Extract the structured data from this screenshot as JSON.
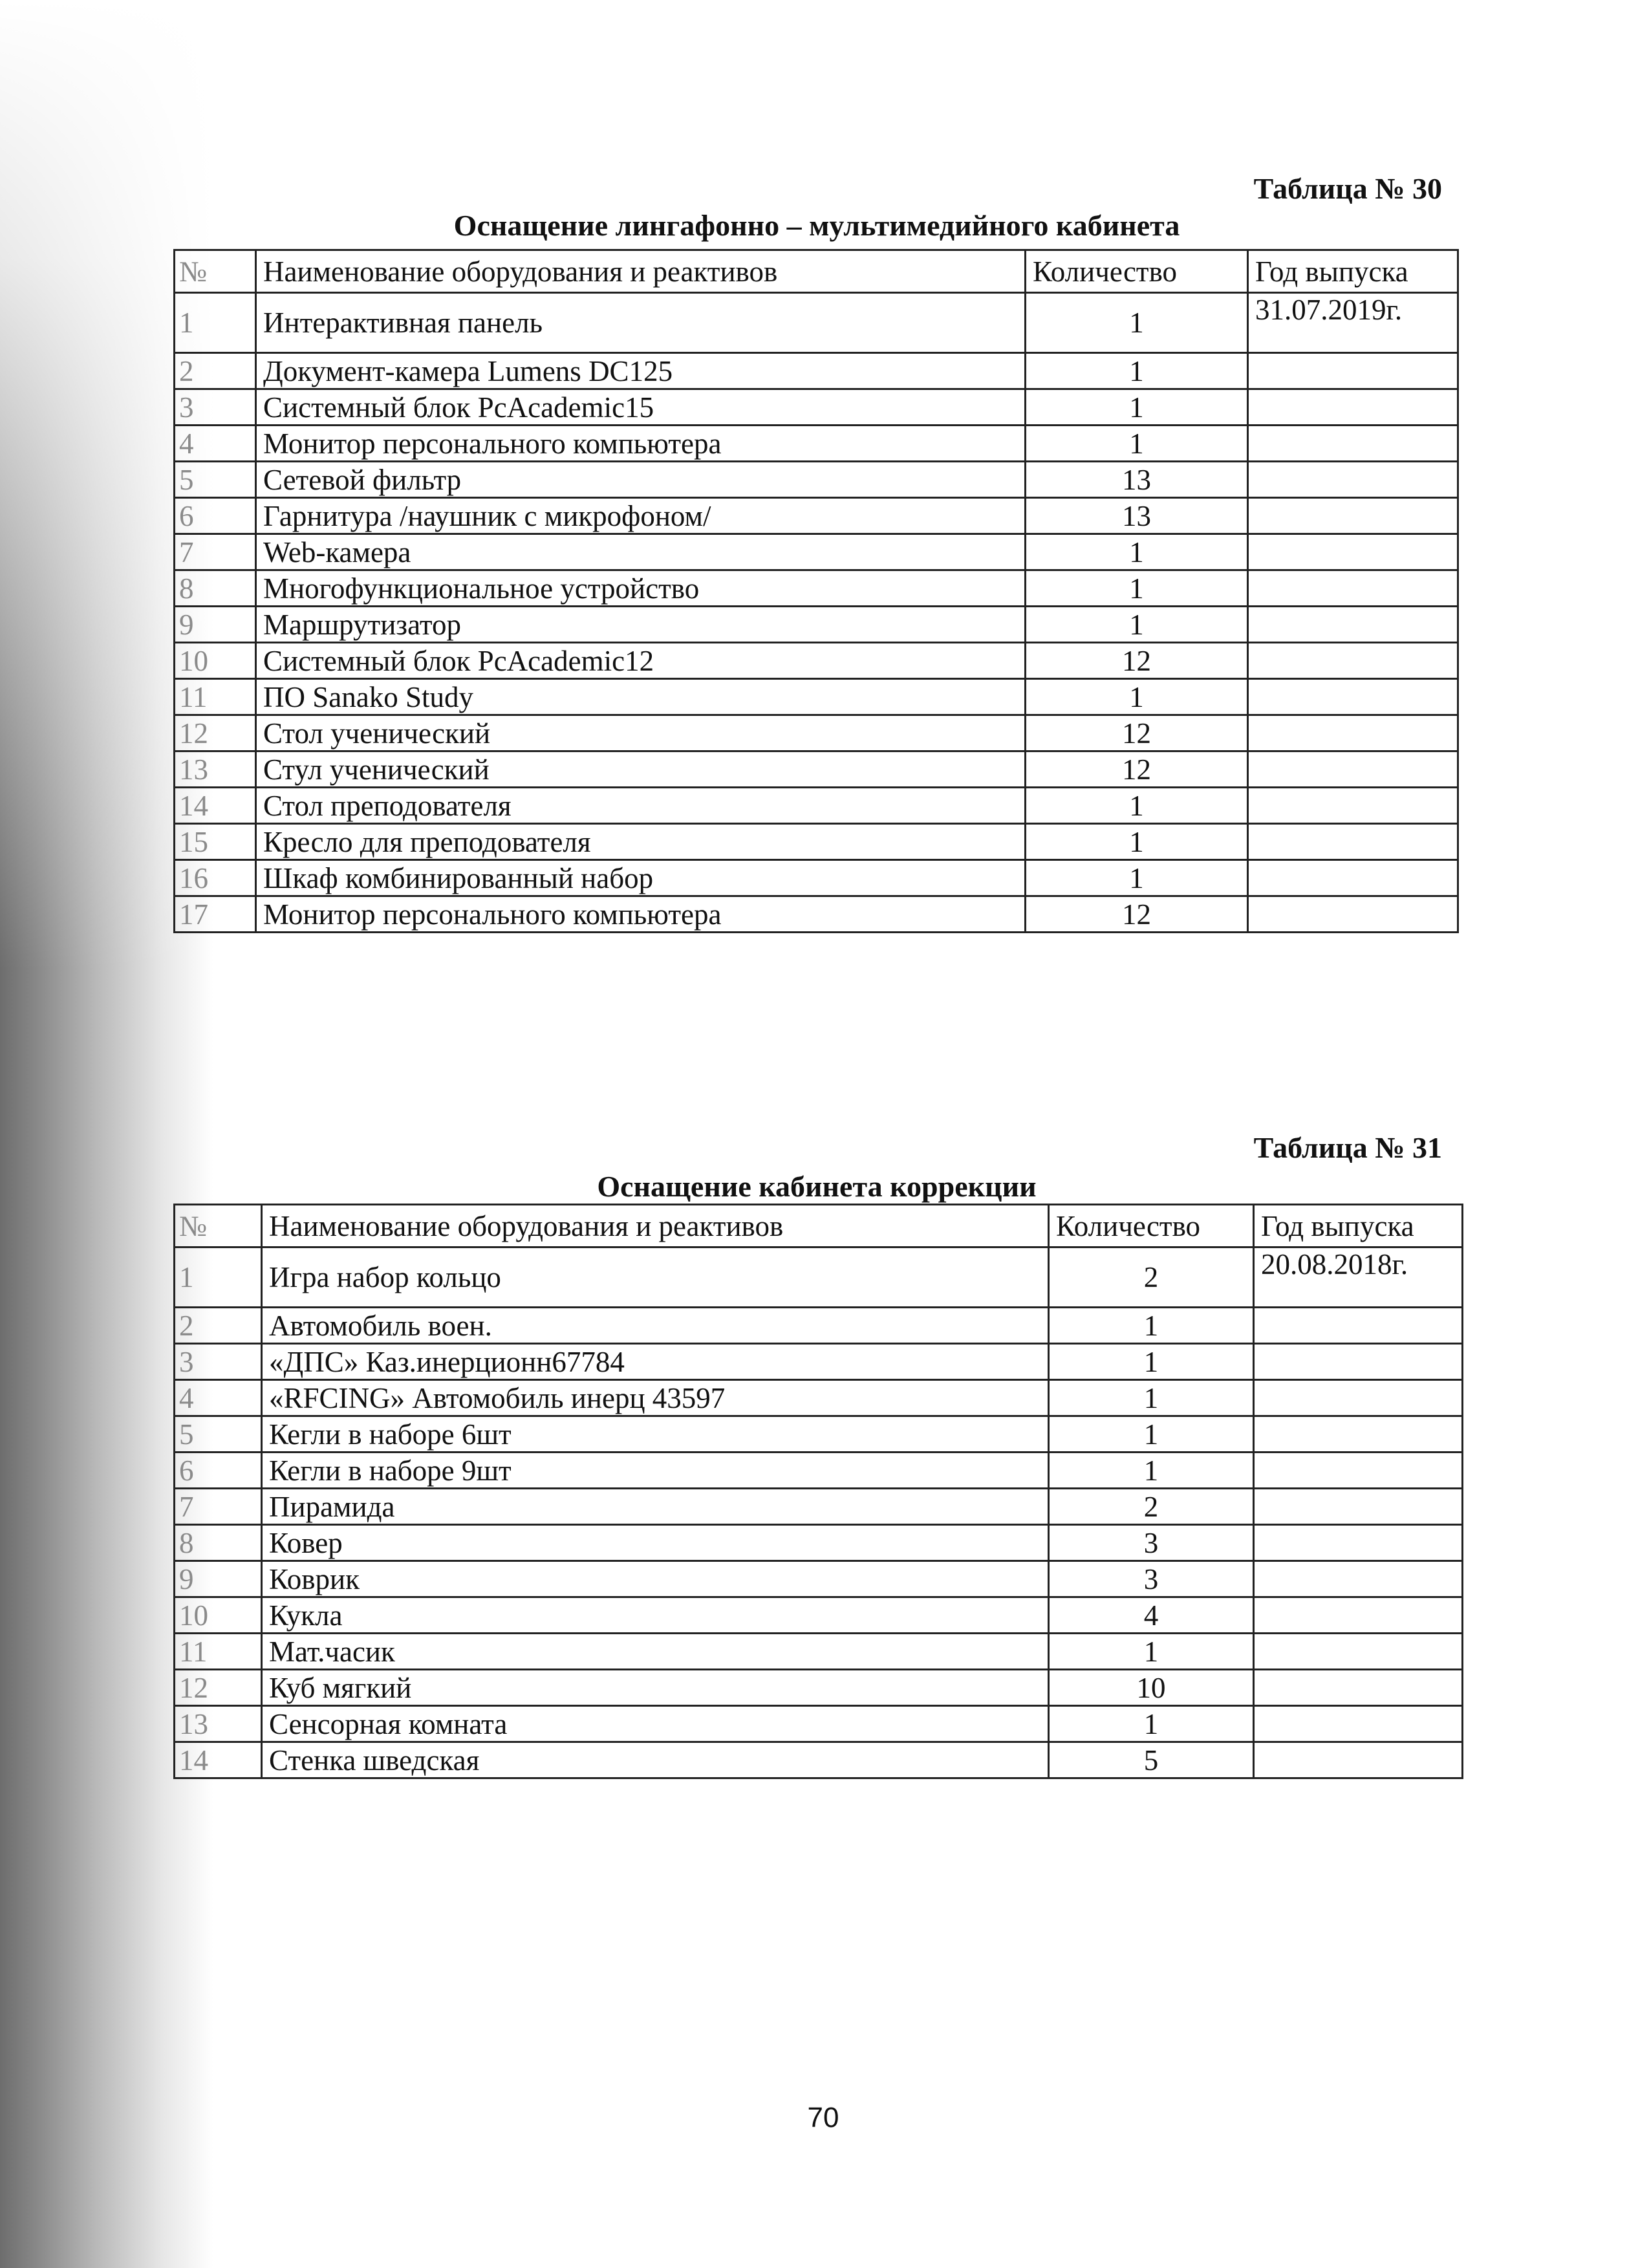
{
  "table30": {
    "label": "Таблица № 30",
    "title": "Оснащение лингафонно – мультимедийного кабинета",
    "headers": [
      "№",
      "Наименование оборудования и реактивов",
      "Количество",
      "Год выпуска"
    ],
    "rows": [
      {
        "n": "1",
        "name": "Интерактивная панель",
        "qty": "1",
        "year": "31.07.2019г."
      },
      {
        "n": "2",
        "name": "Документ-камера Lumens DC125",
        "qty": "1",
        "year": ""
      },
      {
        "n": "3",
        "name": "Системный блок PcAcademic15",
        "qty": "1",
        "year": ""
      },
      {
        "n": "4",
        "name": "Монитор персонального компьютера",
        "qty": "1",
        "year": ""
      },
      {
        "n": "5",
        "name": "Сетевой фильтр",
        "qty": "13",
        "year": ""
      },
      {
        "n": "6",
        "name": "Гарнитура /наушник с микрофоном/",
        "qty": "13",
        "year": ""
      },
      {
        "n": "7",
        "name": "Web-камера",
        "qty": "1",
        "year": ""
      },
      {
        "n": "8",
        "name": "Многофункциональное устройство",
        "qty": "1",
        "year": ""
      },
      {
        "n": "9",
        "name": "Маршрутизатор",
        "qty": "1",
        "year": ""
      },
      {
        "n": "10",
        "name": "Системный блок PcAcademic12",
        "qty": "12",
        "year": ""
      },
      {
        "n": "11",
        "name": "ПО Sanako Study",
        "qty": "1",
        "year": ""
      },
      {
        "n": "12",
        "name": "Стол ученический",
        "qty": "12",
        "year": ""
      },
      {
        "n": "13",
        "name": "Стул ученический",
        "qty": "12",
        "year": ""
      },
      {
        "n": "14",
        "name": "Стол преподователя",
        "qty": "1",
        "year": ""
      },
      {
        "n": "15",
        "name": "Кресло для преподователя",
        "qty": "1",
        "year": ""
      },
      {
        "n": "16",
        "name": "Шкаф комбинированный набор",
        "qty": "1",
        "year": ""
      },
      {
        "n": "17",
        "name": "Монитор персонального компьютера",
        "qty": "12",
        "year": ""
      }
    ]
  },
  "table31": {
    "label": "Таблица № 31",
    "title": "Оснащение кабинета коррекции",
    "headers": [
      "№",
      "Наименование оборудования и реактивов",
      "Количество",
      "Год выпуска"
    ],
    "rows": [
      {
        "n": "1",
        "name": "Игра набор кольцо",
        "qty": "2",
        "year": "20.08.2018г."
      },
      {
        "n": "2",
        "name": "Автомобиль воен.",
        "qty": "1",
        "year": ""
      },
      {
        "n": "3",
        "name": "«ДПС» Каз.инерционн67784",
        "qty": "1",
        "year": ""
      },
      {
        "n": "4",
        "name": "«RFCING» Автомобиль инерц 43597",
        "qty": "1",
        "year": ""
      },
      {
        "n": "5",
        "name": "Кегли в наборе 6шт",
        "qty": "1",
        "year": ""
      },
      {
        "n": "6",
        "name": "Кегли в наборе 9шт",
        "qty": "1",
        "year": ""
      },
      {
        "n": "7",
        "name": "Пирамида",
        "qty": "2",
        "year": ""
      },
      {
        "n": "8",
        "name": "Ковер",
        "qty": "3",
        "year": ""
      },
      {
        "n": "9",
        "name": "Коврик",
        "qty": "3",
        "year": ""
      },
      {
        "n": "10",
        "name": "Кукла",
        "qty": "4",
        "year": ""
      },
      {
        "n": "11",
        "name": "Мат.часик",
        "qty": "1",
        "year": ""
      },
      {
        "n": "12",
        "name": "Куб мягкий",
        "qty": "10",
        "year": ""
      },
      {
        "n": "13",
        "name": "Сенсорная комната",
        "qty": "1",
        "year": ""
      },
      {
        "n": "14",
        "name": "Стенка шведская",
        "qty": "5",
        "year": ""
      }
    ]
  },
  "page_number": "70"
}
